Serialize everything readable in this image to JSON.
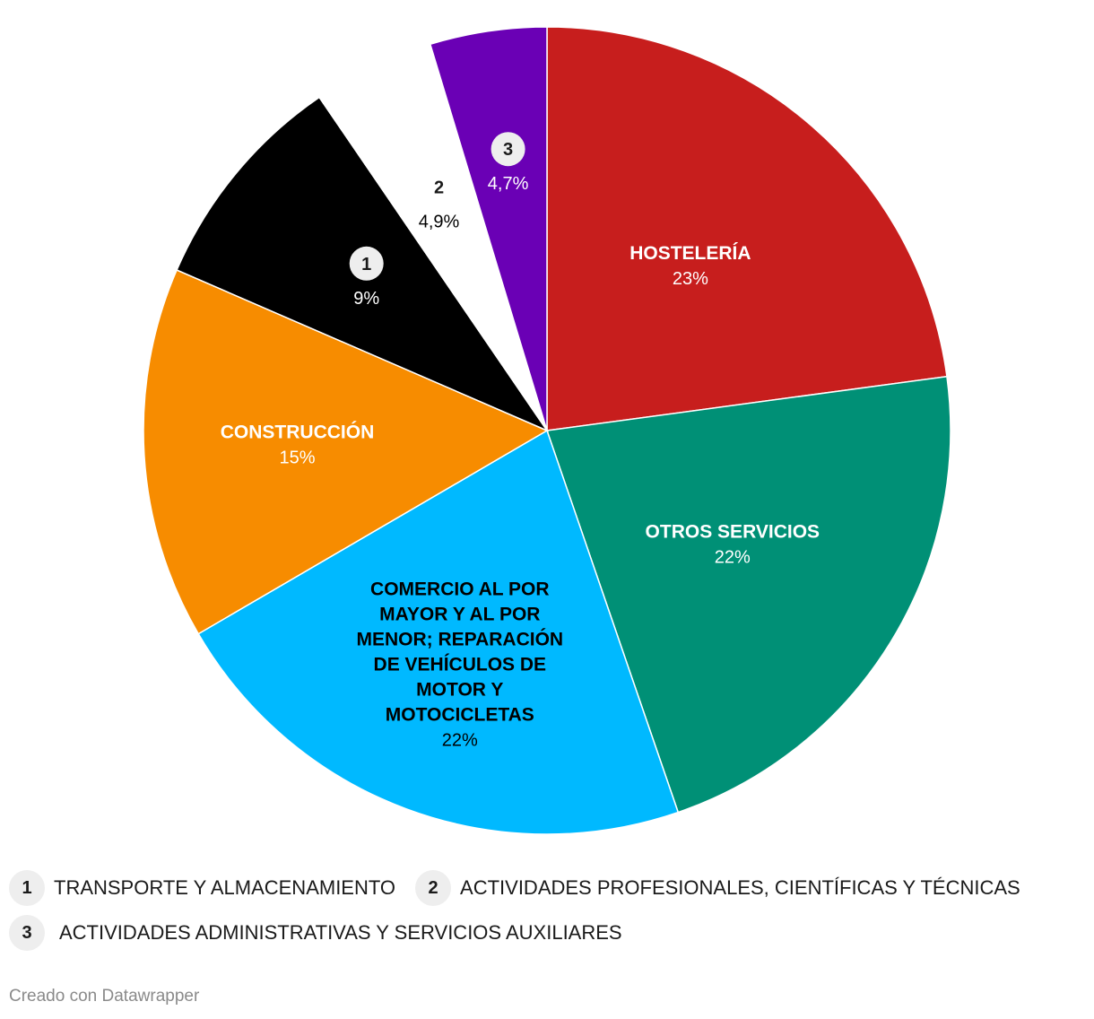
{
  "chart_data": {
    "type": "pie",
    "slices": [
      {
        "label": "HOSTELERÍA",
        "value": 23,
        "value_label": "23%",
        "color": "#c71e1d",
        "text_color": "#ffffff",
        "badge": ""
      },
      {
        "label": "OTROS SERVICIOS",
        "value": 22,
        "value_label": "22%",
        "color": "#009076",
        "text_color": "#ffffff",
        "badge": ""
      },
      {
        "label": "COMERCIO AL POR MAYOR Y AL POR MENOR; REPARACIÓN DE VEHÍCULOS DE MOTOR Y MOTOCICLETAS",
        "value": 22,
        "value_label": "22%",
        "color": "#00b9ff",
        "text_color": "#000000",
        "badge": ""
      },
      {
        "label": "CONSTRUCCIÓN",
        "value": 15,
        "value_label": "15%",
        "color": "#f78c00",
        "text_color": "#ffffff",
        "badge": ""
      },
      {
        "label": "TRANSPORTE Y ALMACENAMIENTO",
        "value": 9,
        "value_label": "9%",
        "color": "#000000",
        "text_color": "#ffffff",
        "badge": "1"
      },
      {
        "label": "ACTIVIDADES PROFESIONALES, CIENTÍFICAS Y TÉCNICAS",
        "value": 4.9,
        "value_label": "4,9%",
        "color": "#ffffff",
        "text_color": "#000000",
        "badge": "2"
      },
      {
        "label": "ACTIVIDADES ADMINISTRATIVAS Y SERVICIOS AUXILIARES",
        "value": 4.7,
        "value_label": "4,7%",
        "color": "#6a00b5",
        "text_color": "#ffffff",
        "badge": "3"
      }
    ]
  },
  "legend": [
    {
      "badge": "1",
      "label": "TRANSPORTE Y ALMACENAMIENTO"
    },
    {
      "badge": "2",
      "label": "ACTIVIDADES PROFESIONALES, CIENTÍFICAS Y TÉCNICAS"
    },
    {
      "badge": "3",
      "label": "ACTIVIDADES ADMINISTRATIVAS Y SERVICIOS AUXILIARES"
    }
  ],
  "footer": {
    "credit": "Creado con Datawrapper"
  }
}
